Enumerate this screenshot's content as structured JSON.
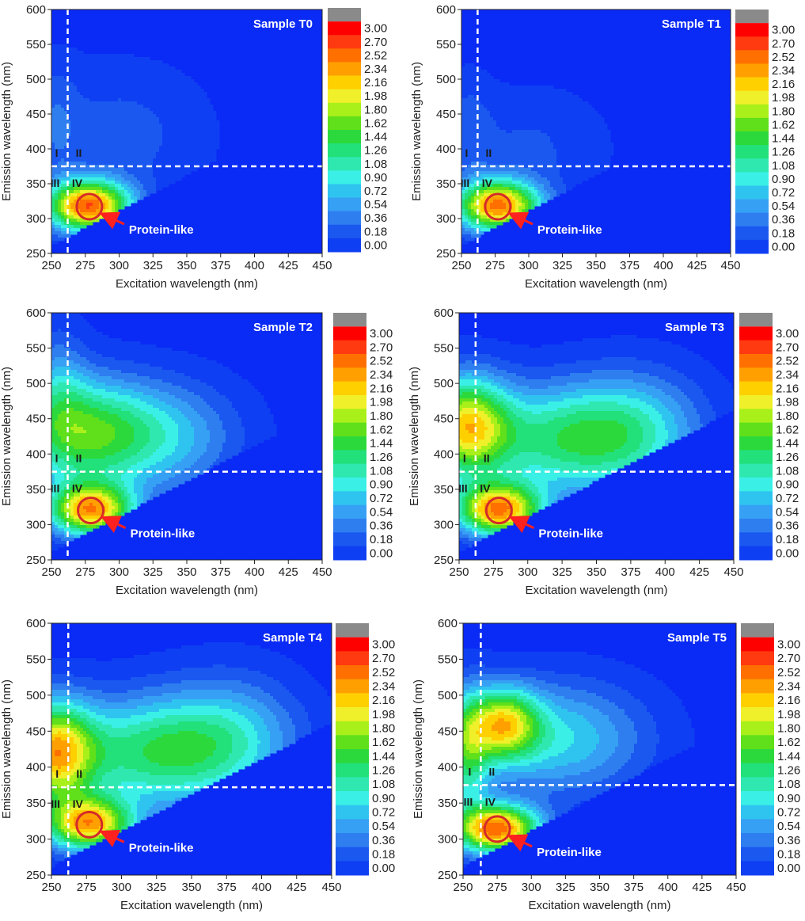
{
  "figure": {
    "xlabel": "Excitation wavelength (nm)",
    "ylabel": "Emission wavelength (nm)",
    "annotation_label": "Protein-like",
    "region_labels": [
      "I",
      "II",
      "III",
      "IV"
    ],
    "colors": {
      "background": "#0a2af5",
      "contour_bands": [
        "#0a2af5",
        "#0f3ff2",
        "#1a58f0",
        "#2e7ef0",
        "#36a0f4",
        "#2fc4f0",
        "#3af0e6",
        "#2ee8b0",
        "#22e07a",
        "#2cd93c",
        "#5fe01a",
        "#a9f01a",
        "#f0f02a",
        "#ffd000",
        "#ffa000",
        "#ff7000",
        "#ff3a10",
        "#ff0000",
        "#8a8a8a"
      ],
      "circle": "#d42a2a",
      "arrow": "#ff2020",
      "guide_lines": "#ffffff"
    }
  },
  "chart_data": [
    {
      "type": "heatmap",
      "title": "Sample T0",
      "xlim": [
        250,
        450
      ],
      "ylim": [
        250,
        600
      ],
      "x_ticks": [
        250,
        275,
        300,
        325,
        350,
        375,
        400,
        425,
        450
      ],
      "y_ticks": [
        250,
        300,
        350,
        400,
        450,
        500,
        550,
        600
      ],
      "colorbar_ticks": [
        "3.00",
        "2.70",
        "2.52",
        "2.34",
        "2.16",
        "1.98",
        "1.80",
        "1.62",
        "1.44",
        "1.26",
        "1.08",
        "0.90",
        "0.72",
        "0.54",
        "0.36",
        "0.18",
        "0.00"
      ],
      "guide_ex": 262,
      "guide_em": 375,
      "peaks": [
        {
          "ex": 277,
          "em": 318,
          "value": 2.7,
          "sx": 22,
          "sy": 26
        },
        {
          "ex": 300,
          "em": 420,
          "value": 0.35,
          "sx": 45,
          "sy": 70
        },
        {
          "ex": 253,
          "em": 440,
          "value": 0.3,
          "sx": 12,
          "sy": 60
        }
      ],
      "protein_like": {
        "ex": 278,
        "em": 317
      }
    },
    {
      "type": "heatmap",
      "title": "Sample T1",
      "xlim": [
        250,
        450
      ],
      "ylim": [
        250,
        600
      ],
      "x_ticks": [
        250,
        275,
        300,
        325,
        350,
        375,
        400,
        425,
        450
      ],
      "y_ticks": [
        250,
        300,
        350,
        400,
        450,
        500,
        550,
        600
      ],
      "colorbar_ticks": [
        "3.00",
        "2.70",
        "2.52",
        "2.34",
        "2.16",
        "1.98",
        "1.80",
        "1.62",
        "1.44",
        "1.26",
        "1.08",
        "0.90",
        "0.72",
        "0.54",
        "0.36",
        "0.18",
        "0.00"
      ],
      "guide_ex": 262,
      "guide_em": 375,
      "peaks": [
        {
          "ex": 277,
          "em": 318,
          "value": 2.6,
          "sx": 22,
          "sy": 26
        },
        {
          "ex": 300,
          "em": 400,
          "value": 0.3,
          "sx": 40,
          "sy": 60
        },
        {
          "ex": 255,
          "em": 430,
          "value": 0.28,
          "sx": 12,
          "sy": 55
        }
      ],
      "protein_like": {
        "ex": 277,
        "em": 317
      }
    },
    {
      "type": "heatmap",
      "title": "Sample T2",
      "xlim": [
        250,
        450
      ],
      "ylim": [
        250,
        600
      ],
      "x_ticks": [
        250,
        275,
        300,
        325,
        350,
        375,
        400,
        425,
        450
      ],
      "y_ticks": [
        250,
        300,
        350,
        400,
        450,
        500,
        550,
        600
      ],
      "colorbar_ticks": [
        "3.00",
        "2.70",
        "2.52",
        "2.34",
        "2.16",
        "1.98",
        "1.80",
        "1.62",
        "1.44",
        "1.26",
        "1.08",
        "0.90",
        "0.72",
        "0.54",
        "0.36",
        "0.18",
        "0.00"
      ],
      "guide_ex": 262,
      "guide_em": 375,
      "peaks": [
        {
          "ex": 279,
          "em": 320,
          "value": 2.4,
          "sx": 22,
          "sy": 26
        },
        {
          "ex": 270,
          "em": 430,
          "value": 1.45,
          "sx": 35,
          "sy": 55
        },
        {
          "ex": 330,
          "em": 425,
          "value": 0.9,
          "sx": 40,
          "sy": 55
        },
        {
          "ex": 255,
          "em": 500,
          "value": 0.5,
          "sx": 15,
          "sy": 60
        }
      ],
      "protein_like": {
        "ex": 279,
        "em": 320
      }
    },
    {
      "type": "heatmap",
      "title": "Sample T3",
      "xlim": [
        250,
        450
      ],
      "ylim": [
        250,
        600
      ],
      "x_ticks": [
        250,
        275,
        300,
        325,
        350,
        375,
        400,
        425,
        450
      ],
      "y_ticks": [
        250,
        300,
        350,
        400,
        450,
        500,
        550,
        600
      ],
      "colorbar_ticks": [
        "3.00",
        "2.70",
        "2.52",
        "2.34",
        "2.16",
        "1.98",
        "1.80",
        "1.62",
        "1.44",
        "1.26",
        "1.08",
        "0.90",
        "0.72",
        "0.54",
        "0.36",
        "0.18",
        "0.00"
      ],
      "guide_ex": 262,
      "guide_em": 375,
      "peaks": [
        {
          "ex": 279,
          "em": 320,
          "value": 2.5,
          "sx": 22,
          "sy": 26
        },
        {
          "ex": 255,
          "em": 440,
          "value": 2.0,
          "sx": 22,
          "sy": 50
        },
        {
          "ex": 330,
          "em": 420,
          "value": 1.4,
          "sx": 50,
          "sy": 55
        },
        {
          "ex": 380,
          "em": 440,
          "value": 0.6,
          "sx": 35,
          "sy": 60
        }
      ],
      "protein_like": {
        "ex": 279,
        "em": 320
      }
    },
    {
      "type": "heatmap",
      "title": "Sample T4",
      "xlim": [
        250,
        450
      ],
      "ylim": [
        250,
        600
      ],
      "x_ticks": [
        250,
        275,
        300,
        325,
        350,
        375,
        400,
        425,
        450
      ],
      "y_ticks": [
        250,
        300,
        350,
        400,
        450,
        500,
        550,
        600
      ],
      "colorbar_ticks": [
        "3.00",
        "2.70",
        "2.52",
        "2.34",
        "2.16",
        "1.98",
        "1.80",
        "1.62",
        "1.44",
        "1.26",
        "1.08",
        "0.90",
        "0.72",
        "0.54",
        "0.36",
        "0.18",
        "0.00"
      ],
      "guide_ex": 262,
      "guide_em": 372,
      "peaks": [
        {
          "ex": 277,
          "em": 320,
          "value": 2.3,
          "sx": 22,
          "sy": 26
        },
        {
          "ex": 252,
          "em": 420,
          "value": 2.1,
          "sx": 20,
          "sy": 50
        },
        {
          "ex": 325,
          "em": 420,
          "value": 1.45,
          "sx": 50,
          "sy": 55
        },
        {
          "ex": 380,
          "em": 450,
          "value": 0.6,
          "sx": 35,
          "sy": 60
        }
      ],
      "protein_like": {
        "ex": 277,
        "em": 320
      }
    },
    {
      "type": "heatmap",
      "title": "Sample T5",
      "xlim": [
        250,
        450
      ],
      "ylim": [
        250,
        600
      ],
      "x_ticks": [
        250,
        275,
        300,
        325,
        350,
        375,
        400,
        425,
        450
      ],
      "y_ticks": [
        250,
        300,
        350,
        400,
        450,
        500,
        550,
        600
      ],
      "colorbar_ticks": [
        "3.00",
        "2.70",
        "2.52",
        "2.34",
        "2.16",
        "1.98",
        "1.80",
        "1.62",
        "1.44",
        "1.26",
        "1.08",
        "0.90",
        "0.72",
        "0.54",
        "0.36",
        "0.18",
        "0.00"
      ],
      "guide_ex": 263,
      "guide_em": 375,
      "peaks": [
        {
          "ex": 275,
          "em": 314,
          "value": 2.7,
          "sx": 22,
          "sy": 24
        },
        {
          "ex": 279,
          "em": 460,
          "value": 1.8,
          "sx": 18,
          "sy": 35
        },
        {
          "ex": 320,
          "em": 440,
          "value": 1.0,
          "sx": 45,
          "sy": 55
        },
        {
          "ex": 252,
          "em": 420,
          "value": 1.2,
          "sx": 12,
          "sy": 60
        }
      ],
      "protein_like": {
        "ex": 275,
        "em": 314
      }
    }
  ]
}
